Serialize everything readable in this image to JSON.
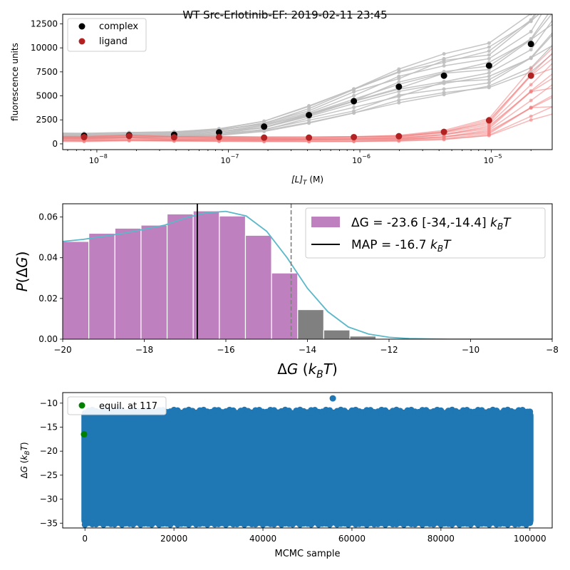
{
  "figure": {
    "title": "WT Src-Erlotinib-EF: 2019-02-11 23:45"
  },
  "chart_data": [
    {
      "type": "scatter",
      "panel": "titration",
      "xlabel": "[L]_T (M)",
      "ylabel": "fluorescence units",
      "xscale": "log",
      "xlim": [
        5.5e-09,
        2.9e-05
      ],
      "ylim": [
        -600,
        13500
      ],
      "xticks": [
        1e-08,
        1e-07,
        1e-06,
        1e-05
      ],
      "xtick_labels": [
        "10",
        "10",
        "10",
        "10"
      ],
      "xtick_exponents": [
        "−8",
        "−7",
        "−6",
        "−5"
      ],
      "yticks": [
        0,
        2500,
        5000,
        7500,
        10000,
        12500
      ],
      "ytick_labels": [
        "0",
        "2500",
        "5000",
        "7500",
        "10000",
        "12500"
      ],
      "legend": {
        "placement": "top-left",
        "entries": [
          "complex",
          "ligand"
        ]
      },
      "x": [
        8e-09,
        1.76e-08,
        3.87e-08,
        8.5e-08,
        1.87e-07,
        4.1e-07,
        9e-07,
        1.98e-06,
        4.36e-06,
        9.6e-06,
        2e-05
      ],
      "series": [
        {
          "name": "complex",
          "color": "#000000",
          "values": [
            850,
            900,
            950,
            1200,
            1800,
            3000,
            4450,
            5950,
            7100,
            8150,
            10400
          ]
        },
        {
          "name": "ligand",
          "color": "#b22222",
          "values": [
            700,
            820,
            680,
            700,
            650,
            650,
            700,
            800,
            1250,
            2450,
            7100
          ]
        }
      ],
      "posterior_band_color_complex": "#bfbfbf",
      "posterior_band_color_ligand": "#f08080"
    },
    {
      "type": "bar",
      "panel": "posterior",
      "xlabel": "ΔG (k_BT)",
      "ylabel": "P(ΔG)",
      "xlim": [
        -20,
        -8
      ],
      "ylim": [
        0,
        0.0665
      ],
      "xticks": [
        -20,
        -18,
        -16,
        -14,
        -12,
        -10,
        -8
      ],
      "xtick_labels": [
        "−20",
        "−18",
        "−16",
        "−14",
        "−12",
        "−10",
        "−8"
      ],
      "yticks": [
        0.0,
        0.02,
        0.04,
        0.06
      ],
      "ytick_labels": [
        "0.00",
        "0.02",
        "0.04",
        "0.06"
      ],
      "bin_edges": [
        -20.0,
        -19.36,
        -18.72,
        -18.08,
        -17.44,
        -16.8,
        -16.16,
        -15.52,
        -14.88,
        -14.24,
        -13.6,
        -12.96,
        -12.32
      ],
      "values": [
        0.048,
        0.052,
        0.0545,
        0.056,
        0.0615,
        0.063,
        0.0605,
        0.051,
        0.0325,
        0.0145,
        0.0045,
        0.0015
      ],
      "credible_upper": -14.4,
      "map": -16.7,
      "in_interval_color": "#bf80bf",
      "outside_color": "#808080",
      "kde_color": "#5bb8c9",
      "kde": {
        "x": [
          -20,
          -19.5,
          -19,
          -18.5,
          -18,
          -17.5,
          -17,
          -16.5,
          -16,
          -15.5,
          -15,
          -14.5,
          -14,
          -13.5,
          -13,
          -12.5,
          -12,
          -11.5,
          -11,
          -10.5,
          -10,
          -9,
          -8
        ],
        "y": [
          0.048,
          0.049,
          0.0505,
          0.052,
          0.054,
          0.056,
          0.0595,
          0.062,
          0.0628,
          0.0605,
          0.053,
          0.04,
          0.025,
          0.0135,
          0.006,
          0.0025,
          0.0009,
          0.0003,
          0.0001,
          0.0,
          0.0,
          0.0,
          0.0
        ]
      },
      "legend": {
        "placement": "top-right",
        "interval_prefix": "ΔG = ",
        "interval_value": "-23.6 [-34,-14.4]",
        "map_prefix": "MAP = ",
        "map_value": "-16.7",
        "unit_k": "k",
        "unit_sub": "B",
        "unit_T": "T"
      }
    },
    {
      "type": "scatter",
      "panel": "trace",
      "xlabel": "MCMC sample",
      "ylabel": "ΔG (k_BT)",
      "xlim": [
        -5000,
        105000
      ],
      "ylim": [
        -36,
        -7.8
      ],
      "xticks": [
        0,
        20000,
        40000,
        60000,
        80000,
        100000
      ],
      "xtick_labels": [
        "0",
        "20000",
        "40000",
        "60000",
        "80000",
        "100000"
      ],
      "yticks": [
        -35,
        -30,
        -25,
        -20,
        -15,
        -10
      ],
      "ytick_labels": [
        "−35",
        "−30",
        "−25",
        "−20",
        "−15",
        "−10"
      ],
      "samples": 100000,
      "band_range": [
        -34.5,
        -12.5
      ],
      "outliers": [
        {
          "x": 55700,
          "y": -9.0
        },
        {
          "x": 5000,
          "y": -12.2
        },
        {
          "x": 12000,
          "y": -11.8
        },
        {
          "x": 27000,
          "y": -12.0
        },
        {
          "x": 37000,
          "y": -12.0
        },
        {
          "x": 45000,
          "y": -12.3
        },
        {
          "x": 51000,
          "y": -12.0
        },
        {
          "x": 62000,
          "y": -12.4
        },
        {
          "x": 66500,
          "y": -12.0
        },
        {
          "x": 75000,
          "y": -12.1
        },
        {
          "x": 81000,
          "y": -12.2
        },
        {
          "x": 88500,
          "y": -12.0
        },
        {
          "x": 96000,
          "y": -12.0
        },
        {
          "x": 99500,
          "y": -11.8
        },
        {
          "x": 11500,
          "y": -34.8
        },
        {
          "x": 64000,
          "y": -35.0
        },
        {
          "x": 86000,
          "y": -34.9
        }
      ],
      "equilibration_point": {
        "x": 117,
        "y": -16.5
      },
      "marker_color": "#1f77b4",
      "equil_color": "#008000",
      "legend": {
        "placement": "top-left",
        "entries": [
          "equil. at 117"
        ]
      }
    }
  ]
}
